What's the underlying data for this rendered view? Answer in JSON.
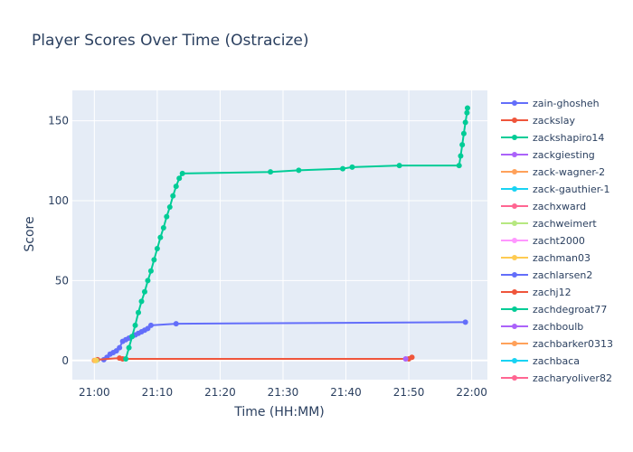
{
  "chart_data": {
    "type": "line",
    "title": "Player Scores Over Time (Ostracize)",
    "xlabel": "Time (HH:MM)",
    "ylabel": "Score",
    "x_ticks": [
      "21:00",
      "21:10",
      "21:20",
      "21:30",
      "21:40",
      "21:50",
      "22:00"
    ],
    "y_ticks": [
      0,
      50,
      100,
      150
    ],
    "xlim": [
      "20:56:30",
      "22:02:30"
    ],
    "ylim": [
      -12,
      169
    ],
    "grid": true,
    "legend_position": "right",
    "series": [
      {
        "name": "zain-ghosheh",
        "color": "#636efa",
        "points": [
          [
            "21:01:30",
            0.5
          ],
          [
            "21:02:00",
            2
          ],
          [
            "21:02:30",
            4
          ],
          [
            "21:03:00",
            5
          ],
          [
            "21:03:30",
            6
          ],
          [
            "21:04:00",
            8
          ],
          [
            "21:04:30",
            12
          ],
          [
            "21:05:00",
            13
          ],
          [
            "21:05:30",
            14
          ],
          [
            "21:06:00",
            15
          ],
          [
            "21:06:30",
            16
          ],
          [
            "21:07:00",
            17
          ],
          [
            "21:07:30",
            18
          ],
          [
            "21:08:00",
            19
          ],
          [
            "21:08:30",
            20
          ],
          [
            "21:09:00",
            22
          ],
          [
            "21:13:00",
            23
          ],
          [
            "21:59:00",
            24
          ]
        ]
      },
      {
        "name": "zackslay",
        "color": "#ef553b",
        "points": [
          [
            "21:00:30",
            0.5
          ],
          [
            "21:04:00",
            1.5
          ],
          [
            "21:04:30",
            1
          ],
          [
            "21:50:00",
            1
          ],
          [
            "21:50:30",
            2
          ]
        ]
      },
      {
        "name": "zackshapiro14",
        "color": "#00cc96",
        "points": [
          [
            "21:05:00",
            1
          ],
          [
            "21:05:30",
            8
          ],
          [
            "21:06:00",
            15
          ],
          [
            "21:06:30",
            22
          ],
          [
            "21:07:00",
            30
          ],
          [
            "21:07:30",
            37
          ],
          [
            "21:08:00",
            43
          ],
          [
            "21:08:30",
            50
          ],
          [
            "21:09:00",
            56
          ],
          [
            "21:09:30",
            63
          ],
          [
            "21:10:00",
            70
          ],
          [
            "21:10:30",
            77
          ],
          [
            "21:11:00",
            83
          ],
          [
            "21:11:30",
            90
          ],
          [
            "21:12:00",
            96
          ],
          [
            "21:12:30",
            103
          ],
          [
            "21:13:00",
            109
          ],
          [
            "21:13:30",
            114
          ],
          [
            "21:14:00",
            117
          ],
          [
            "21:28:00",
            118
          ],
          [
            "21:32:30",
            119
          ],
          [
            "21:39:30",
            120
          ],
          [
            "21:41:00",
            121
          ],
          [
            "21:48:30",
            122
          ],
          [
            "21:58:00",
            122
          ],
          [
            "21:58:15",
            128
          ],
          [
            "21:58:30",
            135
          ],
          [
            "21:58:45",
            142
          ],
          [
            "21:59:00",
            149
          ],
          [
            "21:59:15",
            155
          ],
          [
            "21:59:20",
            158
          ]
        ]
      },
      {
        "name": "zackgiesting",
        "color": "#ab63fa",
        "points": [
          [
            "21:49:30",
            1
          ]
        ]
      },
      {
        "name": "zack-wagner-2",
        "color": "#ffa15a",
        "points": [
          [
            "21:00:00",
            0
          ]
        ]
      },
      {
        "name": "zack-gauthier-1",
        "color": "#19d3f3",
        "points": []
      },
      {
        "name": "zachxward",
        "color": "#ff6692",
        "points": []
      },
      {
        "name": "zachweimert",
        "color": "#b6e880",
        "points": [
          [
            "21:00:20",
            0
          ]
        ]
      },
      {
        "name": "zacht2000",
        "color": "#ff97ff",
        "points": []
      },
      {
        "name": "zachman03",
        "color": "#fecb52",
        "points": [
          [
            "21:00:10",
            0
          ]
        ]
      },
      {
        "name": "zachlarsen2",
        "color": "#636efa",
        "points": []
      },
      {
        "name": "zachj12",
        "color": "#ef553b",
        "points": []
      },
      {
        "name": "zachdegroat77",
        "color": "#00cc96",
        "points": []
      },
      {
        "name": "zachboulb",
        "color": "#ab63fa",
        "points": []
      },
      {
        "name": "zachbarker0313",
        "color": "#ffa15a",
        "points": []
      },
      {
        "name": "zachbaca",
        "color": "#19d3f3",
        "points": []
      },
      {
        "name": "zacharyoliver82",
        "color": "#ff6692",
        "points": []
      }
    ]
  }
}
